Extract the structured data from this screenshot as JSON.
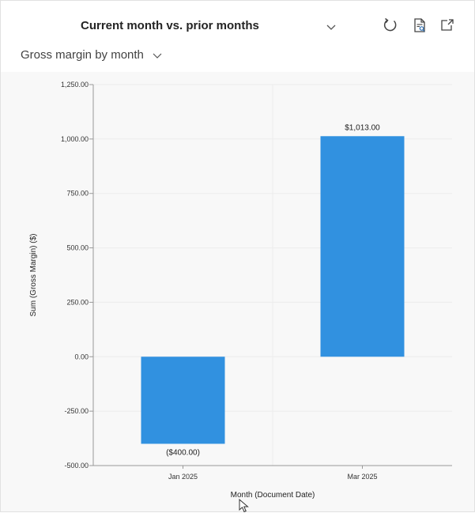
{
  "header": {
    "title": "Current month vs. prior months",
    "subtitle": "Gross margin by month",
    "icons": [
      "chevron-down-icon",
      "refresh-icon",
      "view-records-icon",
      "expand-icon"
    ]
  },
  "chart_data": {
    "type": "bar",
    "categories": [
      "Jan 2025",
      "Mar 2025"
    ],
    "values": [
      -400,
      1013
    ],
    "data_labels": [
      "($400.00)",
      "$1,013.00"
    ],
    "title": "Gross margin by month",
    "xlabel": "Month (Document Date)",
    "ylabel": "Sum (Gross Margin) ($)",
    "ylim": [
      -500,
      1250
    ],
    "yticks": [
      1250,
      1000,
      750,
      500,
      250,
      0,
      -250,
      -500
    ],
    "ytick_labels": [
      "1,250.00",
      "1,000.00",
      "750.00",
      "500.00",
      "250.00",
      "0.00",
      "-250.00",
      "-500.00"
    ],
    "bar_color": "#3191E0",
    "grid": true
  }
}
